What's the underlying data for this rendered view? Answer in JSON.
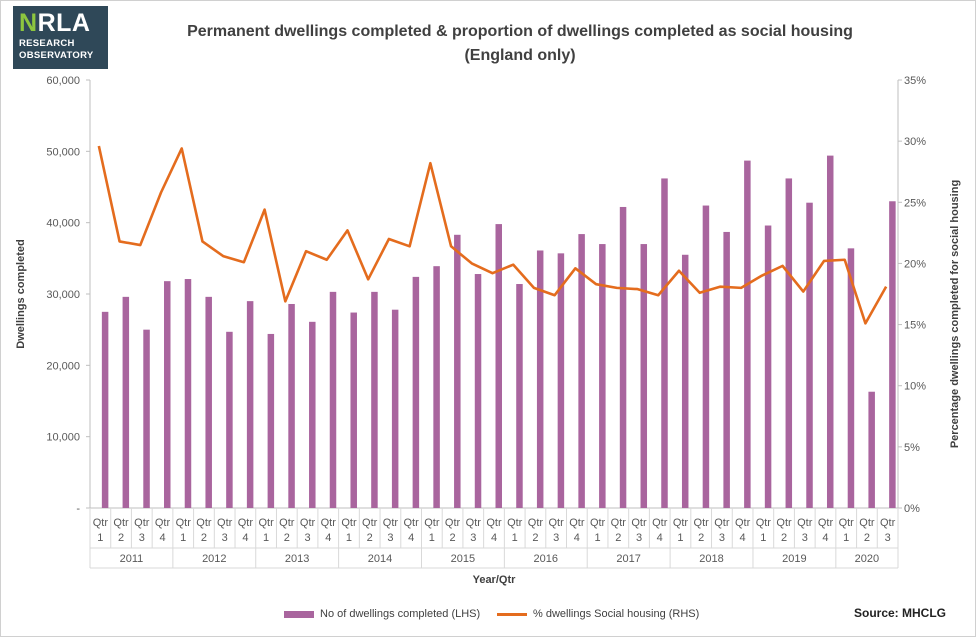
{
  "logo": {
    "mark_a": "N",
    "mark_b": "RLA",
    "line1": "RESEARCH",
    "line2": "OBSERVATORY"
  },
  "title_line1": "Permanent dwellings completed & proportion of dwellings completed as social housing",
  "title_line2": "(England only)",
  "source": "Source: MHCLG",
  "colors": {
    "bar": "#a9659e",
    "line": "#e46c1e"
  },
  "chart_data": {
    "type": "bar",
    "xlabel": "Year/Qtr",
    "ylabel": "Dwellings completed",
    "y2label": "Percentage dwellings completed for social housing",
    "ylim": [
      0,
      60000
    ],
    "y2lim": [
      0,
      35
    ],
    "yticks": [
      "-",
      "10,000",
      "20,000",
      "30,000",
      "40,000",
      "50,000",
      "60,000"
    ],
    "y2ticks": [
      "0%",
      "5%",
      "10%",
      "15%",
      "20%",
      "25%",
      "30%",
      "35%"
    ],
    "grid": false,
    "legend_position": "bottom",
    "years": [
      {
        "label": "2011",
        "quarters": 4
      },
      {
        "label": "2012",
        "quarters": 4
      },
      {
        "label": "2013",
        "quarters": 4
      },
      {
        "label": "2014",
        "quarters": 4
      },
      {
        "label": "2015",
        "quarters": 4
      },
      {
        "label": "2016",
        "quarters": 4
      },
      {
        "label": "2017",
        "quarters": 4
      },
      {
        "label": "2018",
        "quarters": 4
      },
      {
        "label": "2019",
        "quarters": 4
      },
      {
        "label": "2020",
        "quarters": 3
      }
    ],
    "quarter_prefix": "Qtr",
    "quarters": [
      "1",
      "2",
      "3",
      "4",
      "1",
      "2",
      "3",
      "4",
      "1",
      "2",
      "3",
      "4",
      "1",
      "2",
      "3",
      "4",
      "1",
      "2",
      "3",
      "4",
      "1",
      "2",
      "3",
      "4",
      "1",
      "2",
      "3",
      "4",
      "1",
      "2",
      "3",
      "4",
      "1",
      "2",
      "3",
      "4",
      "1",
      "2",
      "3"
    ],
    "series": [
      {
        "name": "No of dwellings completed (LHS)",
        "type": "bar",
        "axis": "left",
        "values": [
          27500,
          29600,
          25000,
          31800,
          32100,
          29600,
          24700,
          29000,
          24400,
          28600,
          26100,
          30300,
          27400,
          30300,
          27800,
          32400,
          33900,
          38300,
          32800,
          39800,
          31400,
          36100,
          35700,
          38400,
          37000,
          42200,
          37000,
          46200,
          35500,
          42400,
          38700,
          48700,
          39600,
          46200,
          42800,
          49400,
          36400,
          16300,
          43000
        ]
      },
      {
        "name": "% dwellings Social housing (RHS)",
        "type": "line",
        "axis": "right",
        "values": [
          29.6,
          21.8,
          21.5,
          25.8,
          29.4,
          21.8,
          20.6,
          20.1,
          24.4,
          16.9,
          21.0,
          20.3,
          22.7,
          18.7,
          22.0,
          21.4,
          28.2,
          21.4,
          20.0,
          19.2,
          19.9,
          18.0,
          17.4,
          19.6,
          18.3,
          18.0,
          17.9,
          17.4,
          19.4,
          17.6,
          18.1,
          18.0,
          19.0,
          19.8,
          17.7,
          20.2,
          20.3,
          15.1,
          18.1
        ]
      }
    ]
  }
}
